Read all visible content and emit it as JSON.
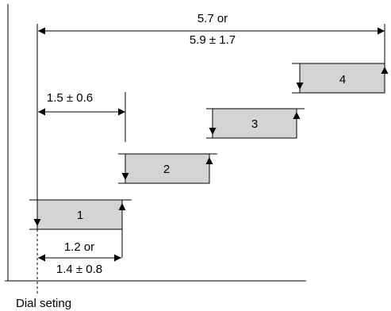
{
  "top_dimension": {
    "line1": "5.7 or",
    "line2": "5.9 ± 1.7"
  },
  "step_dimension": {
    "label": "1.5 ± 0.6"
  },
  "bottom_dimension": {
    "line1": "1.2 or",
    "line2": "1.4 ± 0.8"
  },
  "blocks": [
    {
      "label": "1"
    },
    {
      "label": "2"
    },
    {
      "label": "3"
    },
    {
      "label": "4"
    }
  ],
  "footer": {
    "dial_label": "Dial seting"
  }
}
